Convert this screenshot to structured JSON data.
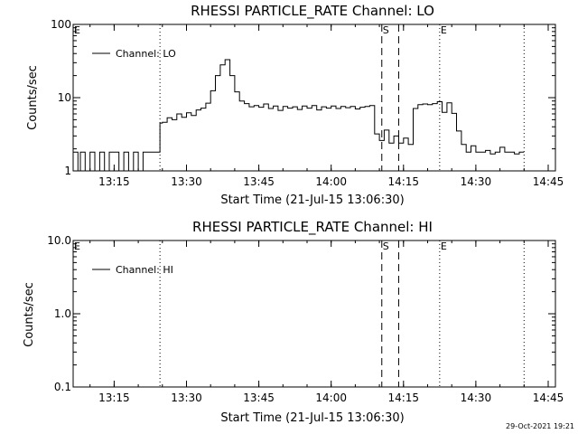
{
  "footer": {
    "stamp": "29-Oct-2021 19:21"
  },
  "chart_data": [
    {
      "type": "line",
      "title": "RHESSI PARTICLE_RATE Channel: LO",
      "xlabel": "Start Time (21-Jul-15 13:06:30)",
      "ylabel": "Counts/sec",
      "yscale": "log",
      "xlim": [
        "13:06:30",
        "14:46:30"
      ],
      "ylim": [
        1,
        100
      ],
      "x_ticks": [
        "13:15",
        "13:30",
        "13:45",
        "14:00",
        "14:15",
        "14:30",
        "14:45"
      ],
      "y_ticks": [
        "1",
        "10",
        "100"
      ],
      "legend": {
        "label": "Channel: LO",
        "placement": "top-left"
      },
      "markers": [
        {
          "label": "E",
          "time": "13:06:30",
          "style": "dotted"
        },
        {
          "time": "13:24:30",
          "style": "dotted"
        },
        {
          "label": "S",
          "time": "14:10:30",
          "style": "dashed"
        },
        {
          "time": "14:14:00",
          "style": "dashed"
        },
        {
          "label": "E",
          "time": "14:22:30",
          "style": "dotted"
        },
        {
          "time": "14:40:00",
          "style": "dotted"
        }
      ],
      "series": [
        {
          "step": true,
          "x": [
            "13:06:30",
            "13:07:30",
            "13:08:00",
            "13:09:00",
            "13:10:00",
            "13:11:00",
            "13:12:00",
            "13:13:00",
            "13:14:00",
            "13:15:00",
            "13:16:00",
            "13:17:00",
            "13:18:00",
            "13:19:00",
            "13:20:00",
            "13:20:30",
            "13:21:00",
            "13:22:00",
            "13:23:00",
            "13:24:00",
            "13:24:30",
            "13:25:00",
            "13:26:00",
            "13:27:00",
            "13:28:00",
            "13:29:00",
            "13:30:00",
            "13:31:00",
            "13:32:00",
            "13:33:00",
            "13:34:00",
            "13:35:00",
            "13:36:00",
            "13:37:00",
            "13:38:00",
            "13:39:00",
            "13:40:00",
            "13:41:00",
            "13:42:00",
            "13:43:00",
            "13:44:00",
            "13:45:00",
            "13:46:00",
            "13:47:00",
            "13:48:00",
            "13:49:00",
            "13:50:00",
            "13:51:00",
            "13:52:00",
            "13:53:00",
            "13:54:00",
            "13:55:00",
            "13:56:00",
            "13:57:00",
            "13:58:00",
            "13:59:00",
            "14:00:00",
            "14:01:00",
            "14:02:00",
            "14:03:00",
            "14:04:00",
            "14:05:00",
            "14:06:00",
            "14:07:00",
            "14:08:00",
            "14:09:00",
            "14:10:00",
            "14:11:00",
            "14:12:00",
            "14:13:00",
            "14:14:00",
            "14:15:00",
            "14:16:00",
            "14:17:00",
            "14:18:00",
            "14:19:00",
            "14:20:00",
            "14:21:00",
            "14:22:00",
            "14:23:00",
            "14:24:00",
            "14:25:00",
            "14:26:00",
            "14:27:00",
            "14:28:00",
            "14:29:00",
            "14:30:00",
            "14:31:00",
            "14:32:00",
            "14:33:00",
            "14:34:00",
            "14:35:00",
            "14:36:00",
            "14:37:00",
            "14:38:00",
            "14:39:00",
            "14:40:00"
          ],
          "values": [
            1.8,
            1,
            1.8,
            1,
            1.8,
            1,
            1.8,
            1,
            1.8,
            1.8,
            1,
            1.8,
            1,
            1.8,
            1,
            1,
            1.8,
            1.8,
            1.8,
            1.8,
            4.5,
            4.6,
            5.3,
            5.0,
            6.0,
            5.4,
            6.2,
            5.7,
            6.8,
            7.2,
            8.4,
            12.4,
            20,
            28,
            33,
            20,
            12,
            9,
            8.3,
            7.5,
            7.8,
            7.4,
            8.2,
            7.1,
            7.7,
            6.7,
            7.6,
            7.2,
            7.5,
            6.9,
            7.7,
            7.2,
            7.8,
            6.8,
            7.5,
            7.2,
            7.7,
            7.1,
            7.6,
            7.3,
            7.6,
            7.0,
            7.4,
            7.6,
            7.8,
            3.2,
            2.6,
            3.6,
            2.4,
            3.0,
            2.4,
            2.8,
            2.3,
            7.1,
            8.0,
            8.2,
            8.0,
            8.3,
            8.8,
            6.3,
            8.5,
            6.1,
            3.5,
            2.3,
            1.8,
            2.2,
            1.8,
            1.8,
            1.9,
            1.7,
            1.8,
            2.1,
            1.8,
            1.8,
            1.7,
            1.8,
            1.8
          ]
        }
      ]
    },
    {
      "type": "line",
      "title": "RHESSI PARTICLE_RATE Channel: HI",
      "xlabel": "Start Time (21-Jul-15 13:06:30)",
      "ylabel": "Counts/sec",
      "yscale": "log",
      "xlim": [
        "13:06:30",
        "14:46:30"
      ],
      "ylim": [
        0.1,
        10
      ],
      "x_ticks": [
        "13:15",
        "13:30",
        "13:45",
        "14:00",
        "14:15",
        "14:30",
        "14:45"
      ],
      "y_ticks": [
        "0.1",
        "1.0",
        "10.0"
      ],
      "legend": {
        "label": "Channel: HI",
        "placement": "top-left"
      },
      "markers": [
        {
          "label": "E",
          "time": "13:06:30",
          "style": "dotted"
        },
        {
          "time": "13:24:30",
          "style": "dotted"
        },
        {
          "label": "S",
          "time": "14:10:30",
          "style": "dashed"
        },
        {
          "time": "14:14:00",
          "style": "dashed"
        },
        {
          "label": "E",
          "time": "14:22:30",
          "style": "dotted"
        },
        {
          "time": "14:40:00",
          "style": "dotted"
        }
      ],
      "series": [
        {
          "step": true,
          "x": [],
          "values": []
        }
      ]
    }
  ]
}
